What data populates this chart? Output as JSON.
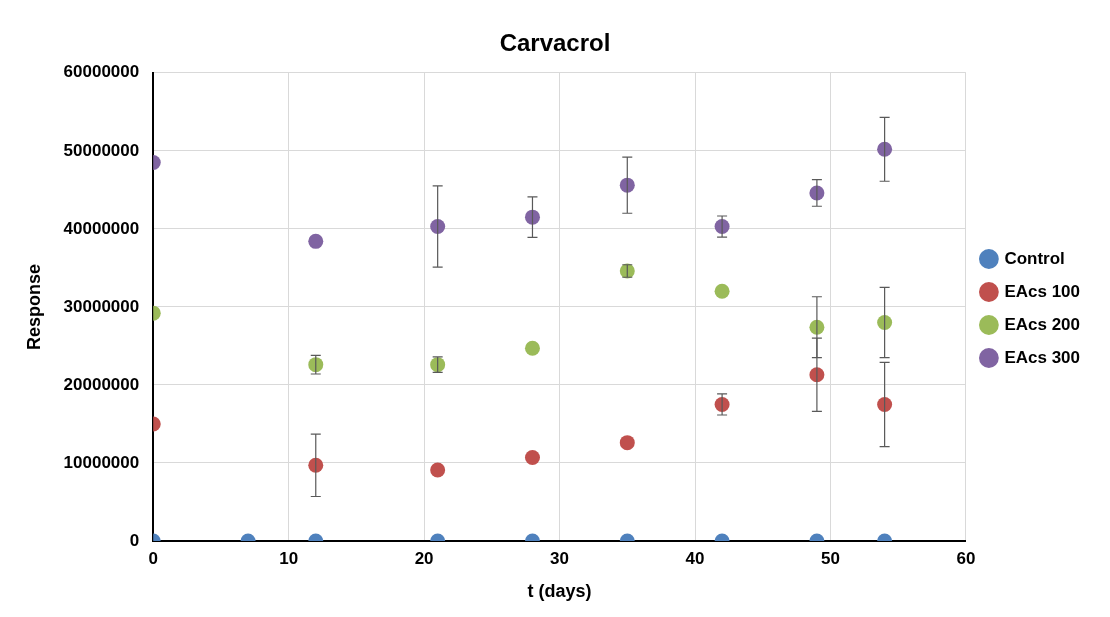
{
  "chart_data": {
    "type": "scatter",
    "title": "Carvacrol",
    "xlabel": "t (days)",
    "ylabel": "Response",
    "xlim": [
      0,
      60
    ],
    "xticks": [
      0,
      10,
      20,
      30,
      40,
      50,
      60
    ],
    "ylim": [
      0,
      60000000
    ],
    "yticks": [
      0,
      10000000,
      20000000,
      30000000,
      40000000,
      50000000,
      60000000
    ],
    "grid": true,
    "legend": "right",
    "marker": "circle",
    "series": [
      {
        "name": "Control",
        "color": "#4f81bd",
        "x": [
          0,
          7,
          12,
          21,
          28,
          35,
          42,
          49,
          54
        ],
        "values": [
          0,
          0,
          0,
          0,
          0,
          0,
          0,
          0,
          0
        ]
      },
      {
        "name": "EAcs 100",
        "color": "#c0504d",
        "x": [
          0,
          12,
          21,
          28,
          35,
          42,
          49,
          54
        ],
        "values": [
          15000000,
          9700000,
          9100000,
          10700000,
          12600000,
          17500000,
          21300000,
          17500000
        ],
        "errors": [
          null,
          4000000,
          null,
          null,
          null,
          1350000,
          4700000,
          5400000
        ]
      },
      {
        "name": "EAcs 200",
        "color": "#9bbb59",
        "x": [
          0,
          12,
          21,
          28,
          35,
          42,
          49,
          54
        ],
        "values": [
          29200000,
          22600000,
          22600000,
          24700000,
          34600000,
          32000000,
          27400000,
          28000000
        ],
        "errors": [
          null,
          1200000,
          1000000,
          null,
          800000,
          null,
          3900000,
          4500000
        ]
      },
      {
        "name": "EAcs 300",
        "color": "#8064a2",
        "x": [
          0,
          12,
          21,
          28,
          35,
          42,
          49,
          54
        ],
        "values": [
          48500000,
          38400000,
          40300000,
          41500000,
          45600000,
          40300000,
          44600000,
          50200000
        ],
        "errors": [
          null,
          null,
          5200000,
          2600000,
          3600000,
          1350000,
          1700000,
          4100000
        ]
      }
    ]
  }
}
